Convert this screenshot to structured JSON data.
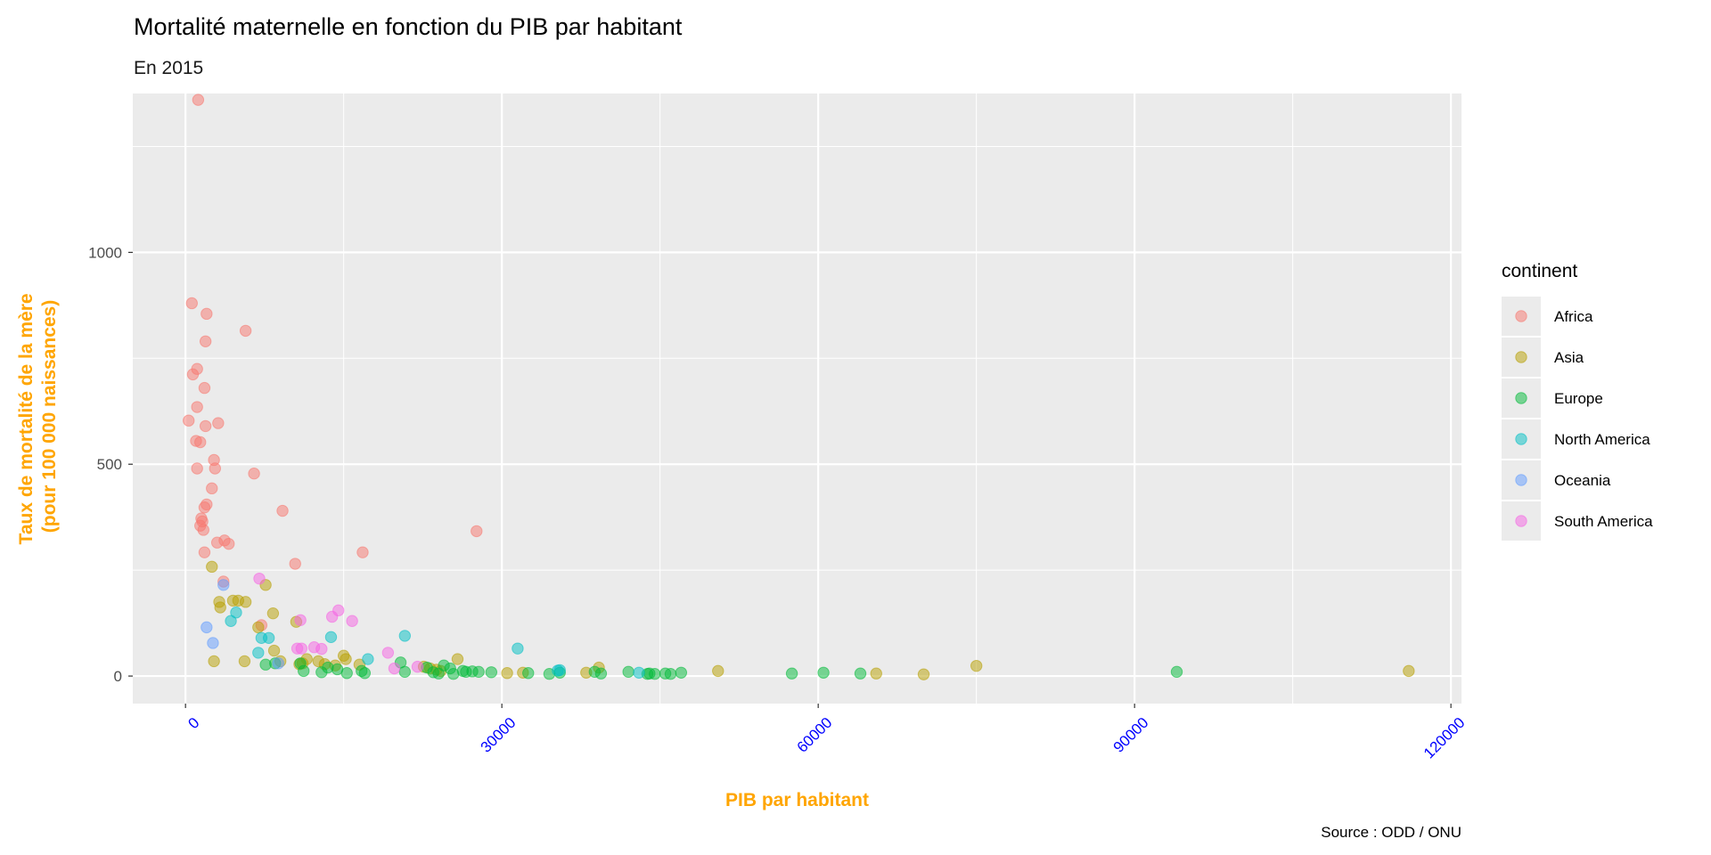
{
  "chart_data": {
    "type": "scatter",
    "title": "Mortalité maternelle en fonction du PIB par habitant",
    "subtitle": "En 2015",
    "xlabel": "PIB par habitant",
    "ylabel_lines": [
      "Taux de mortalité de la mère",
      "(pour 100 000 naissances)"
    ],
    "caption": "Source : ODD / ONU",
    "xlim": [
      -5000,
      121000
    ],
    "ylim": [
      -65,
      1375
    ],
    "xticks": [
      0,
      30000,
      60000,
      90000,
      120000
    ],
    "xtick_labels": [
      "0",
      "30000",
      "60000",
      "90000",
      "120000"
    ],
    "yticks": [
      0,
      500,
      1000
    ],
    "ytick_labels": [
      "0",
      "500",
      "1000"
    ],
    "grid": true,
    "legend_title": "continent",
    "legend_position": "right",
    "colors": {
      "panel": "#EBEBEB",
      "gridline": "#FFFFFF",
      "axis_title": "#FFA500",
      "x_tick_label": "#0000FF"
    },
    "series": [
      {
        "name": "Africa",
        "color": "#F8766D",
        "points": [
          [
            1200,
            1360
          ],
          [
            600,
            880
          ],
          [
            2000,
            855
          ],
          [
            5700,
            815
          ],
          [
            1900,
            790
          ],
          [
            700,
            712
          ],
          [
            1100,
            725
          ],
          [
            1800,
            680
          ],
          [
            1100,
            635
          ],
          [
            300,
            603
          ],
          [
            3100,
            597
          ],
          [
            1900,
            590
          ],
          [
            1000,
            555
          ],
          [
            1400,
            552
          ],
          [
            2700,
            510
          ],
          [
            2800,
            490
          ],
          [
            1100,
            490
          ],
          [
            6500,
            478
          ],
          [
            2500,
            443
          ],
          [
            2000,
            405
          ],
          [
            1800,
            398
          ],
          [
            9200,
            390
          ],
          [
            1500,
            372
          ],
          [
            1600,
            365
          ],
          [
            1400,
            355
          ],
          [
            1700,
            345
          ],
          [
            27600,
            342
          ],
          [
            3700,
            320
          ],
          [
            3000,
            315
          ],
          [
            4100,
            312
          ],
          [
            1800,
            292
          ],
          [
            16800,
            292
          ],
          [
            10400,
            265
          ],
          [
            3600,
            223
          ],
          [
            7200,
            120
          ]
        ]
      },
      {
        "name": "Asia",
        "color": "#B79F00",
        "points": [
          [
            2500,
            258
          ],
          [
            7600,
            215
          ],
          [
            3200,
            175
          ],
          [
            4500,
            178
          ],
          [
            5000,
            178
          ],
          [
            5700,
            175
          ],
          [
            3300,
            162
          ],
          [
            8300,
            148
          ],
          [
            10500,
            128
          ],
          [
            6900,
            115
          ],
          [
            8400,
            60
          ],
          [
            12600,
            35
          ],
          [
            15000,
            48
          ],
          [
            15200,
            40
          ],
          [
            14200,
            25
          ],
          [
            11500,
            40
          ],
          [
            11100,
            30
          ],
          [
            10800,
            28
          ],
          [
            13200,
            28
          ],
          [
            25800,
            40
          ],
          [
            9000,
            35
          ],
          [
            5600,
            35
          ],
          [
            2700,
            35
          ],
          [
            22600,
            22
          ],
          [
            23200,
            18
          ],
          [
            38000,
            8
          ],
          [
            32000,
            8
          ],
          [
            30500,
            7
          ],
          [
            39200,
            20
          ],
          [
            50500,
            12
          ],
          [
            65500,
            6
          ],
          [
            70000,
            4
          ],
          [
            75000,
            24
          ],
          [
            116000,
            12
          ],
          [
            23800,
            15
          ],
          [
            16500,
            27
          ],
          [
            24200,
            12
          ]
        ]
      },
      {
        "name": "Europe",
        "color": "#00BA38",
        "points": [
          [
            7600,
            27
          ],
          [
            8500,
            30
          ],
          [
            10900,
            30
          ],
          [
            11200,
            12
          ],
          [
            12900,
            9
          ],
          [
            14400,
            16
          ],
          [
            15300,
            7
          ],
          [
            16700,
            12
          ],
          [
            17000,
            7
          ],
          [
            20400,
            32
          ],
          [
            20800,
            10
          ],
          [
            22900,
            20
          ],
          [
            23500,
            9
          ],
          [
            24000,
            6
          ],
          [
            24500,
            25
          ],
          [
            25100,
            18
          ],
          [
            25400,
            5
          ],
          [
            26600,
            10
          ],
          [
            27200,
            11
          ],
          [
            27800,
            10
          ],
          [
            29000,
            9
          ],
          [
            32500,
            7
          ],
          [
            34500,
            5
          ],
          [
            35500,
            8
          ],
          [
            38800,
            10
          ],
          [
            39400,
            6
          ],
          [
            42000,
            10
          ],
          [
            44000,
            6
          ],
          [
            44500,
            5
          ],
          [
            45500,
            6
          ],
          [
            46000,
            5
          ],
          [
            47000,
            8
          ],
          [
            57500,
            6
          ],
          [
            60500,
            8
          ],
          [
            64000,
            6
          ],
          [
            94000,
            10
          ],
          [
            43800,
            5
          ],
          [
            26300,
            12
          ],
          [
            13500,
            20
          ]
        ]
      },
      {
        "name": "North America",
        "color": "#00BFC4",
        "points": [
          [
            4300,
            130
          ],
          [
            4800,
            150
          ],
          [
            7200,
            90
          ],
          [
            7900,
            90
          ],
          [
            6900,
            55
          ],
          [
            13800,
            92
          ],
          [
            20800,
            95
          ],
          [
            17300,
            40
          ],
          [
            31500,
            65
          ],
          [
            35300,
            13
          ],
          [
            35500,
            14
          ],
          [
            43000,
            8
          ]
        ]
      },
      {
        "name": "Oceania",
        "color": "#619CFF",
        "points": [
          [
            3600,
            215
          ],
          [
            2000,
            115
          ],
          [
            2600,
            78
          ],
          [
            8800,
            30
          ]
        ]
      },
      {
        "name": "South America",
        "color": "#F564E3",
        "points": [
          [
            7000,
            230
          ],
          [
            10900,
            132
          ],
          [
            10600,
            65
          ],
          [
            11000,
            65
          ],
          [
            12200,
            68
          ],
          [
            12900,
            64
          ],
          [
            13900,
            140
          ],
          [
            14500,
            155
          ],
          [
            15800,
            130
          ],
          [
            19200,
            55
          ],
          [
            19800,
            18
          ],
          [
            22000,
            22
          ]
        ]
      }
    ]
  }
}
